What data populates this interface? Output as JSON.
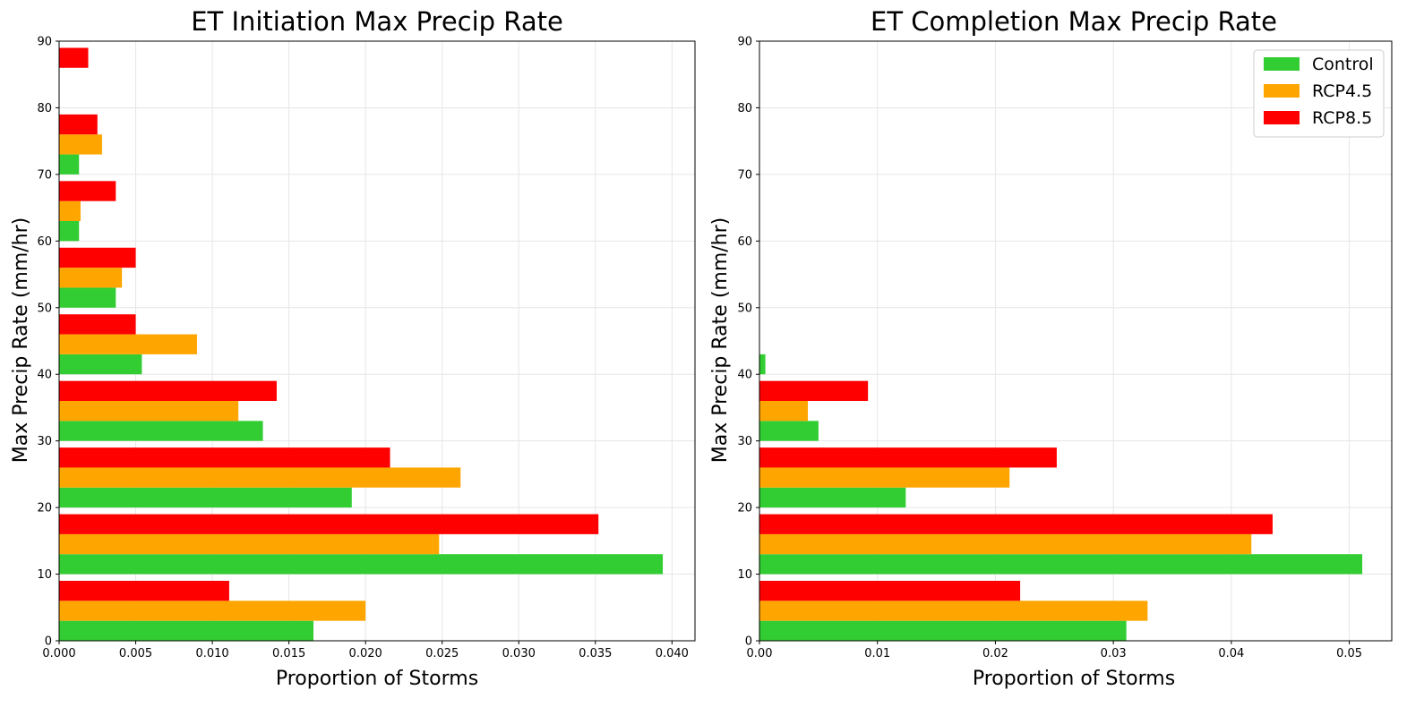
{
  "chart_data": [
    {
      "type": "bar",
      "orientation": "horizontal",
      "title": "ET Initiation Max Precip Rate",
      "xlabel": "Proportion of Storms",
      "ylabel": "Max Precip Rate (mm/hr)",
      "xlim": [
        0,
        0.0415
      ],
      "ylim": [
        0,
        90
      ],
      "xticks": [
        0,
        0.005,
        0.01,
        0.015,
        0.02,
        0.025,
        0.03,
        0.035,
        0.04
      ],
      "xtick_labels": [
        "0.000",
        "0.005",
        "0.010",
        "0.015",
        "0.020",
        "0.025",
        "0.030",
        "0.035",
        "0.040"
      ],
      "yticks": [
        0,
        10,
        20,
        30,
        40,
        50,
        60,
        70,
        80,
        90
      ],
      "ytick_labels": [
        "0",
        "10",
        "20",
        "30",
        "40",
        "50",
        "60",
        "70",
        "80",
        "90"
      ],
      "bin_edges": [
        0,
        10,
        20,
        30,
        40,
        50,
        60,
        70,
        80,
        90
      ],
      "grid": true,
      "legend": false,
      "series": [
        {
          "name": "Control",
          "color": "#32cd32",
          "values": [
            0.0166,
            0.0394,
            0.0191,
            0.0133,
            0.0054,
            0.0037,
            0.0013,
            0.0013,
            0
          ]
        },
        {
          "name": "RCP4.5",
          "color": "#ffa500",
          "values": [
            0.02,
            0.0248,
            0.0262,
            0.0117,
            0.009,
            0.0041,
            0.0014,
            0.0028,
            0
          ]
        },
        {
          "name": "RCP8.5",
          "color": "#ff0000",
          "values": [
            0.0111,
            0.0352,
            0.0216,
            0.0142,
            0.005,
            0.005,
            0.0037,
            0.0025,
            0.0019
          ]
        }
      ]
    },
    {
      "type": "bar",
      "orientation": "horizontal",
      "title": "ET Completion Max Precip Rate",
      "xlabel": "Proportion of Storms",
      "ylabel": "Max Precip Rate (mm/hr)",
      "xlim": [
        0,
        0.0536
      ],
      "ylim": [
        0,
        90
      ],
      "xticks": [
        0,
        0.01,
        0.02,
        0.03,
        0.04,
        0.05
      ],
      "xtick_labels": [
        "0.00",
        "0.01",
        "0.02",
        "0.03",
        "0.04",
        "0.05"
      ],
      "yticks": [
        0,
        10,
        20,
        30,
        40,
        50,
        60,
        70,
        80,
        90
      ],
      "ytick_labels": [
        "0",
        "10",
        "20",
        "30",
        "40",
        "50",
        "60",
        "70",
        "80",
        "90"
      ],
      "bin_edges": [
        0,
        10,
        20,
        30,
        40,
        50,
        60,
        70,
        80,
        90
      ],
      "grid": true,
      "legend": true,
      "legend_position": "upper-right",
      "series": [
        {
          "name": "Control",
          "color": "#32cd32",
          "values": [
            0.0311,
            0.0511,
            0.0124,
            0.005,
            0.0005,
            0,
            0,
            0,
            0
          ]
        },
        {
          "name": "RCP4.5",
          "color": "#ffa500",
          "values": [
            0.0329,
            0.0417,
            0.0212,
            0.0041,
            0,
            0,
            0,
            0,
            0
          ]
        },
        {
          "name": "RCP8.5",
          "color": "#ff0000",
          "values": [
            0.0221,
            0.0435,
            0.0252,
            0.0092,
            0,
            0,
            0,
            0,
            0
          ]
        }
      ]
    }
  ]
}
